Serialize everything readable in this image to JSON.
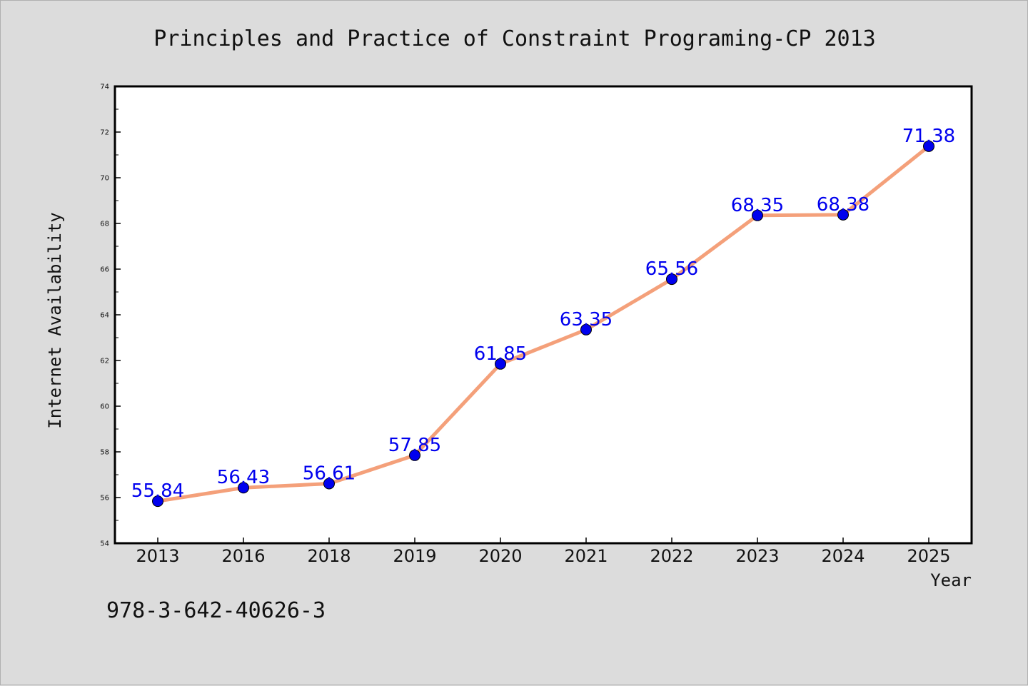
{
  "chart_data": {
    "type": "line",
    "title": "Principles and Practice of Constraint Programing-CP 2013",
    "xlabel": "Year",
    "ylabel": "Internet Availability",
    "categories": [
      "2013",
      "2016",
      "2018",
      "2019",
      "2020",
      "2021",
      "2022",
      "2023",
      "2024",
      "2025"
    ],
    "series": [
      {
        "values": [
          55.84,
          56.43,
          56.61,
          57.85,
          61.85,
          63.35,
          65.56,
          68.35,
          68.38,
          71.38
        ]
      }
    ],
    "data_labels": [
      "55.84",
      "56.43",
      "56.61",
      "57.85",
      "61.85",
      "63.35",
      "65.56",
      "68.35",
      "68.38",
      "71.38"
    ],
    "ylim": [
      54,
      74
    ],
    "yticks": [
      "54",
      "56",
      "58",
      "60",
      "62",
      "64",
      "66",
      "68",
      "70",
      "72",
      "74"
    ],
    "grid": false,
    "legend": "none",
    "colors": {
      "line": "#f4a07a",
      "marker": "#0000ee",
      "label": "#0000ee",
      "plot_background": "#ffffff",
      "figure_background": "#dcdcdc"
    }
  },
  "footer": {
    "text": "978-3-642-40626-3"
  }
}
